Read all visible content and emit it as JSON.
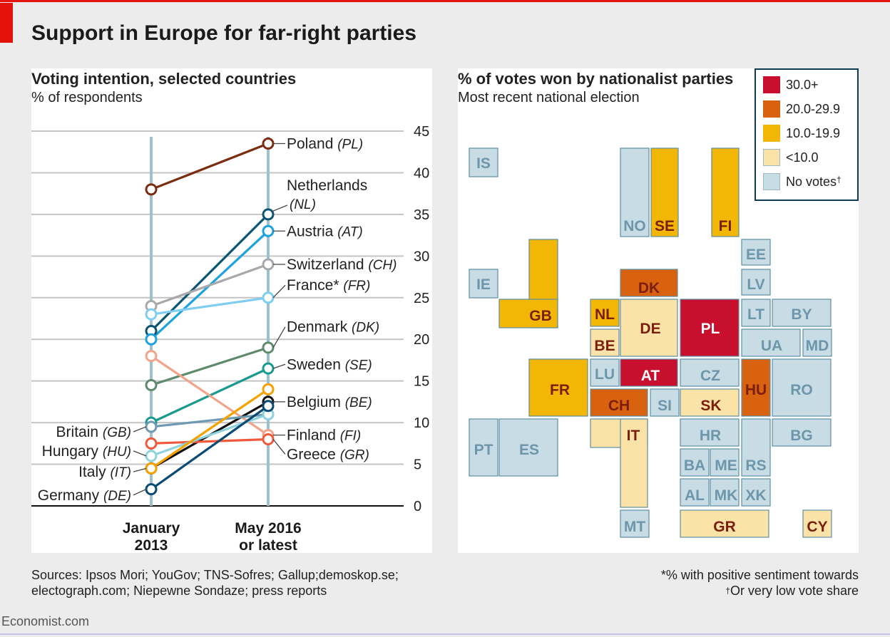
{
  "title": "Support in Europe for far-right parties",
  "left_panel": {
    "title": "Voting intention, selected countries",
    "subtitle": "% of respondents"
  },
  "right_panel": {
    "title": "% of votes won by nationalist parties",
    "subtitle": "Most recent national election"
  },
  "sources": [
    "Sources: Ipsos Mori; YouGov; TNS-Sofres; Gallup;demoskop.se;",
    "electograph.com; Niepewne Sondaze; press reports"
  ],
  "notes": {
    "asterisk": "*% with positive sentiment towards",
    "dagger_mark": "†",
    "dagger": "Or very low vote share"
  },
  "brand": "Economist.com",
  "colors": {
    "accent": "#e3120b",
    "c30": "#c8102e",
    "c20": "#d8620f",
    "c10": "#f2b705",
    "c0": "#fbe3a8",
    "cnone": "#c7dce5",
    "axis_line": "#9ec0cc"
  },
  "chart_data": [
    {
      "type": "line",
      "categories": [
        "January 2013",
        "May 2016 or latest"
      ],
      "category_labels": [
        [
          "January",
          "2013"
        ],
        [
          "May 2016",
          "or latest"
        ]
      ],
      "y_ticks": [
        0,
        5,
        10,
        15,
        20,
        25,
        30,
        35,
        40,
        45
      ],
      "ylim": [
        0,
        45
      ],
      "series": [
        {
          "name": "Poland",
          "code": "(PL)",
          "values": [
            38,
            43.5
          ],
          "color": "#7b2d12",
          "label_side": "right",
          "label_y": 43.5
        },
        {
          "name": "Netherlands",
          "code": "(NL)",
          "values": [
            21,
            35
          ],
          "color": "#0b5573",
          "label_side": "right2",
          "label_y": 38.5
        },
        {
          "name": "Austria",
          "code": "(AT)",
          "values": [
            20,
            33
          ],
          "color": "#1ea2dd",
          "label_side": "right",
          "label_y": 33
        },
        {
          "name": "Switzerland",
          "code": "(CH)",
          "values": [
            24,
            29
          ],
          "color": "#a9a9ad",
          "label_side": "right",
          "label_y": 29
        },
        {
          "name": "France*",
          "code": "(FR)",
          "values": [
            23,
            25
          ],
          "color": "#7fcdf0",
          "label_side": "right",
          "label_y": 26.5
        },
        {
          "name": "Denmark",
          "code": "(DK)",
          "values": [
            14.5,
            19
          ],
          "color": "#5f8a6c",
          "label_side": "right",
          "label_y": 21.5
        },
        {
          "name": "Sweden",
          "code": "(SE)",
          "values": [
            10,
            16.5
          ],
          "color": "#1a9a8e",
          "label_side": "right",
          "label_y": 17
        },
        {
          "name": "Belgium",
          "code": "(BE)",
          "values": [
            4.5,
            12.5
          ],
          "color": "#111111",
          "label_side": "right",
          "label_y": 12.5
        },
        {
          "name": "Finland",
          "code": "(FI)",
          "values": [
            18,
            8.5
          ],
          "color": "#f0a58a",
          "label_side": "right",
          "label_y": 8.5
        },
        {
          "name": "Greece",
          "code": "(GR)",
          "values": [
            7.5,
            8
          ],
          "color": "#f05a3c",
          "label_side": "right",
          "label_y": 6.2
        },
        {
          "name": "Britain",
          "code": "(GB)",
          "values": [
            9.5,
            11
          ],
          "color": "#6f9bb2",
          "label_side": "left",
          "label_y": 8.9
        },
        {
          "name": "Hungary",
          "code": "(HU)",
          "values": [
            6,
            11
          ],
          "color": "#8fd3dc",
          "label_side": "left",
          "label_y": 6.6
        },
        {
          "name": "Italy",
          "code": "(IT)",
          "values": [
            4.5,
            14
          ],
          "color": "#f5a100",
          "label_side": "left",
          "label_y": 4.1
        },
        {
          "name": "Germany",
          "code": "(DE)",
          "values": [
            2,
            12
          ],
          "color": "#0b4a73",
          "label_side": "left",
          "label_y": 1.3
        }
      ]
    },
    {
      "type": "table",
      "legend": [
        {
          "label": "30.0+",
          "class": "c30"
        },
        {
          "label": "20.0-29.9",
          "class": "c20"
        },
        {
          "label": "10.0-19.9",
          "class": "c10"
        },
        {
          "label": "<10.0",
          "class": "c0"
        },
        {
          "label": "No votes",
          "dagger": "†",
          "class": "cnone"
        }
      ],
      "countries": [
        {
          "code": "IS",
          "class": "cnone"
        },
        {
          "code": "NO",
          "class": "cnone"
        },
        {
          "code": "SE",
          "class": "c10"
        },
        {
          "code": "FI",
          "class": "c10"
        },
        {
          "code": "EE",
          "class": "cnone"
        },
        {
          "code": "LV",
          "class": "cnone"
        },
        {
          "code": "IE",
          "class": "cnone"
        },
        {
          "code": "GB",
          "class": "c10"
        },
        {
          "code": "DK",
          "class": "c20"
        },
        {
          "code": "NL",
          "class": "c10"
        },
        {
          "code": "BE",
          "class": "c0"
        },
        {
          "code": "DE",
          "class": "c0"
        },
        {
          "code": "PL",
          "class": "c30"
        },
        {
          "code": "LT",
          "class": "cnone"
        },
        {
          "code": "BY",
          "class": "cnone"
        },
        {
          "code": "UA",
          "class": "cnone"
        },
        {
          "code": "MD",
          "class": "cnone"
        },
        {
          "code": "FR",
          "class": "c10"
        },
        {
          "code": "LU",
          "class": "cnone"
        },
        {
          "code": "AT",
          "class": "c30"
        },
        {
          "code": "CZ",
          "class": "cnone"
        },
        {
          "code": "HU",
          "class": "c20"
        },
        {
          "code": "RO",
          "class": "cnone"
        },
        {
          "code": "CH",
          "class": "c20"
        },
        {
          "code": "SI",
          "class": "cnone"
        },
        {
          "code": "SK",
          "class": "c0"
        },
        {
          "code": "PT",
          "class": "cnone"
        },
        {
          "code": "ES",
          "class": "cnone"
        },
        {
          "code": "IT",
          "class": "c0"
        },
        {
          "code": "HR",
          "class": "cnone"
        },
        {
          "code": "BG",
          "class": "cnone"
        },
        {
          "code": "BA",
          "class": "cnone"
        },
        {
          "code": "ME",
          "class": "cnone"
        },
        {
          "code": "RS",
          "class": "cnone"
        },
        {
          "code": "AL",
          "class": "cnone"
        },
        {
          "code": "MK",
          "class": "cnone"
        },
        {
          "code": "XK",
          "class": "cnone"
        },
        {
          "code": "MT",
          "class": "cnone"
        },
        {
          "code": "GR",
          "class": "c0"
        },
        {
          "code": "CY",
          "class": "c0"
        }
      ]
    }
  ]
}
